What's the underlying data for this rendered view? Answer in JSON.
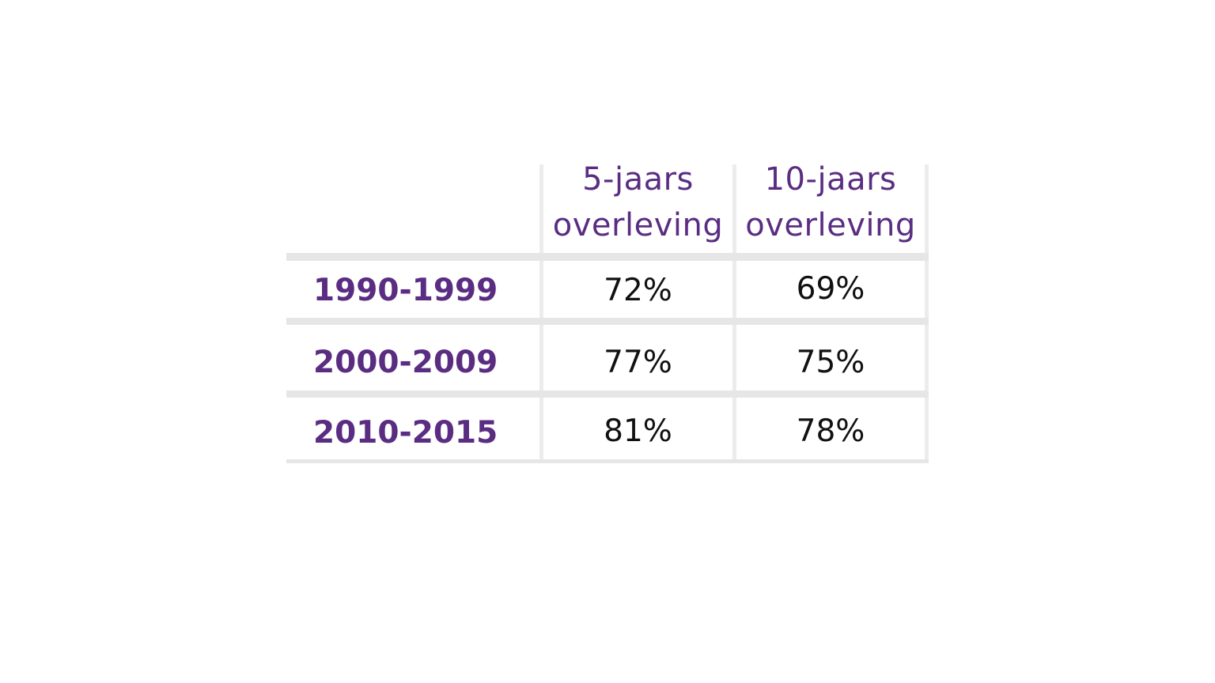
{
  "chart_data": {
    "type": "table",
    "columns": [
      {
        "line1": "5-jaars",
        "line2": "overleving"
      },
      {
        "line1": "10-jaars",
        "line2": "overleving"
      }
    ],
    "rows": [
      {
        "label": "1990-1999",
        "values": [
          "72%",
          "69%"
        ]
      },
      {
        "label": "2000-2009",
        "values": [
          "77%",
          "75%"
        ]
      },
      {
        "label": "2010-2015",
        "values": [
          "81%",
          "78%"
        ]
      }
    ]
  },
  "colors": {
    "header_text": "#5a2d82",
    "row_label_text": "#5a2d82",
    "value_text": "#111111",
    "grid_lines": "#e6e6e6"
  }
}
